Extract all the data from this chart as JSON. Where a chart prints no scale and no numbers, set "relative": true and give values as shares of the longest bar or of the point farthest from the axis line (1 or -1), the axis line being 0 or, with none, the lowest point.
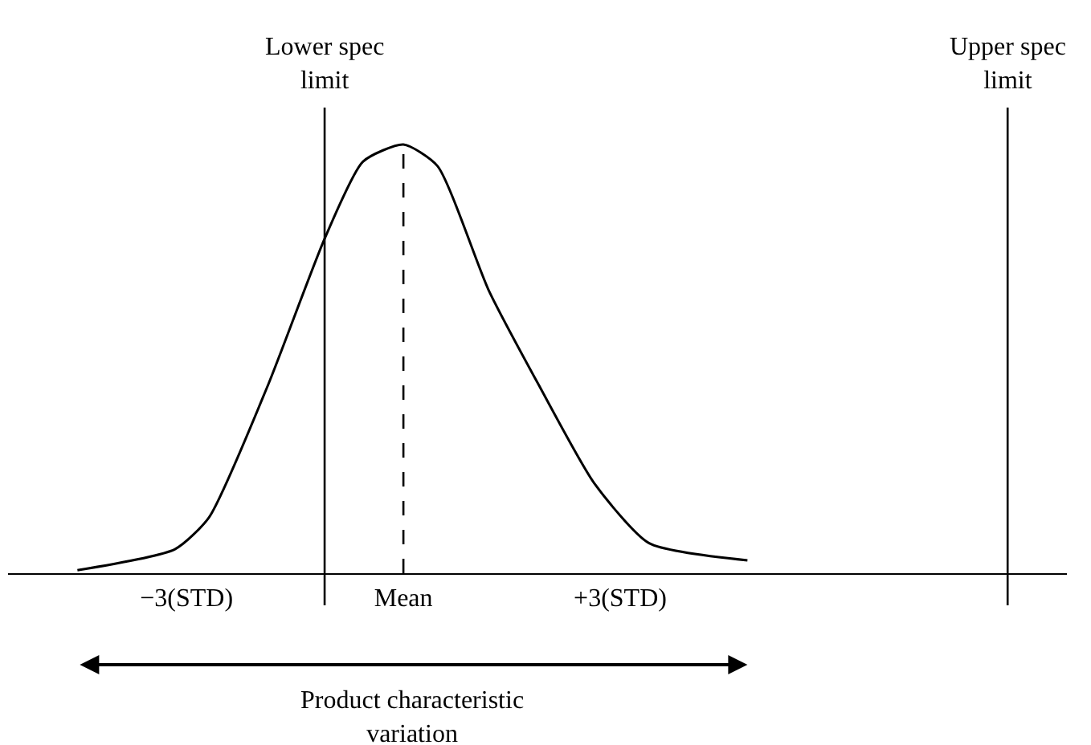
{
  "chart_data": {
    "type": "line",
    "relative": true,
    "x": [
      -4.51,
      -3.16,
      -2.69,
      -1.87,
      -1.09,
      -0.56,
      0,
      0.47,
      1.18,
      1.87,
      2.64,
      3.4,
      4.76
    ],
    "series": [
      {
        "color": "#000000",
        "values": [
          0.007,
          0.056,
          0.13,
          0.44,
          0.78,
          0.96,
          1.0,
          0.95,
          0.66,
          0.44,
          0.21,
          0.07,
          0.03
        ]
      }
    ],
    "xlim": [
      -5.47,
      9.18
    ],
    "xticks": [
      {
        "value": -3,
        "label": "−3(STD)"
      },
      {
        "value": 0,
        "label": "Mean"
      },
      {
        "value": 3,
        "label": "+3(STD)"
      }
    ],
    "ref_lines": [
      {
        "axis": "x",
        "value": -1.09,
        "label": "Lower spec limit",
        "color": "#000000"
      },
      {
        "axis": "x",
        "value": 8.36,
        "label": "Upper spec limit",
        "color": "#000000"
      },
      {
        "axis": "x",
        "value": 0,
        "color": "#000000",
        "line_style": "dashed"
      }
    ],
    "annotations": [
      "Product characteristic variation"
    ],
    "marker": "none",
    "line_style": "solid"
  }
}
